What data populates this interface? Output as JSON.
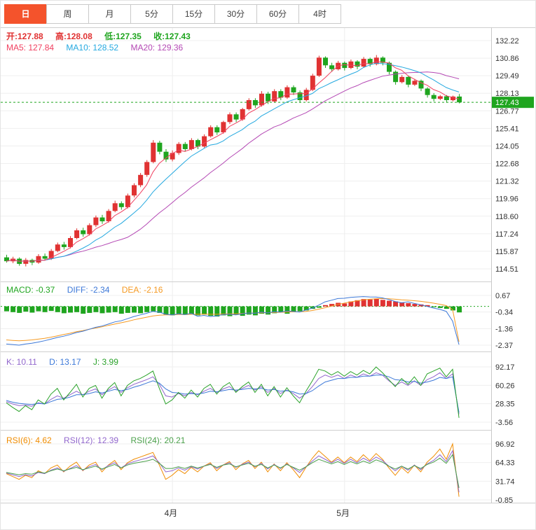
{
  "toolbar": {
    "tabs": [
      {
        "label": "日",
        "active": true
      },
      {
        "label": "周",
        "active": false
      },
      {
        "label": "月",
        "active": false
      },
      {
        "label": "5分",
        "active": false
      },
      {
        "label": "15分",
        "active": false
      },
      {
        "label": "30分",
        "active": false
      },
      {
        "label": "60分",
        "active": false
      },
      {
        "label": "4时",
        "active": false
      }
    ]
  },
  "main_header": {
    "open": "开:127.88",
    "high": "高:128.08",
    "low": "低:127.35",
    "close": "收:127.43",
    "ma5": "MA5: 127.84",
    "ma10": "MA10: 128.52",
    "ma20": "MA20: 129.36"
  },
  "macd_header": {
    "macd": "MACD: -0.37",
    "diff": "DIFF: -2.34",
    "dea": "DEA: -2.16"
  },
  "kdj_header": {
    "k": "K: 10.11",
    "d": "D: 13.17",
    "j": "J: 3.99"
  },
  "rsi_header": {
    "rsi6": "RSI(6): 4.62",
    "rsi12": "RSI(12): 12.39",
    "rsi24": "RSI(24): 20.21"
  },
  "colors": {
    "up": "#e03232",
    "down": "#1fa51f",
    "ma5": "#f04060",
    "ma10": "#25a9e0",
    "ma20": "#b448b4",
    "diff": "#3c78d8",
    "dea": "#f59a23",
    "k": "#9166cc",
    "d": "#3c78d8",
    "j": "#2aa22a",
    "rsi6": "#f08c00",
    "rsi12": "#9166cc",
    "rsi24": "#4ba04b",
    "price": "#1fa51f",
    "tab_active_bg": "#f4532c",
    "grid": "#efefef",
    "month_grid": "#ededed",
    "separator": "#cfcfcf",
    "axis_text": "#333333"
  },
  "chart_data": [
    {
      "type": "candlestick",
      "name": "price",
      "current_price": "127.43",
      "ma_periods": [
        5,
        10,
        20
      ],
      "y_ticks": [
        "132.22",
        "130.86",
        "129.49",
        "128.13",
        "126.77",
        "125.41",
        "124.05",
        "122.68",
        "121.32",
        "119.96",
        "118.60",
        "117.24",
        "115.87",
        "114.51"
      ],
      "x_labels": [
        {
          "label": "4月",
          "index": 26
        },
        {
          "label": "5月",
          "index": 53
        }
      ],
      "ohlc": [
        [
          115.4,
          115.6,
          115.0,
          115.1
        ],
        [
          115.1,
          115.45,
          114.95,
          115.3
        ],
        [
          115.3,
          115.4,
          114.75,
          114.9
        ],
        [
          114.9,
          115.35,
          114.7,
          115.2
        ],
        [
          115.2,
          115.3,
          114.8,
          115.0
        ],
        [
          115.0,
          115.65,
          114.9,
          115.5
        ],
        [
          115.5,
          115.7,
          115.15,
          115.3
        ],
        [
          115.3,
          116.05,
          115.2,
          115.9
        ],
        [
          115.9,
          116.55,
          115.8,
          116.4
        ],
        [
          116.4,
          116.6,
          116.0,
          116.2
        ],
        [
          116.2,
          117.05,
          116.1,
          116.9
        ],
        [
          116.9,
          117.65,
          116.8,
          117.5
        ],
        [
          117.5,
          117.7,
          117.0,
          117.2
        ],
        [
          117.2,
          118.05,
          117.1,
          117.9
        ],
        [
          117.9,
          118.65,
          117.75,
          118.5
        ],
        [
          118.5,
          118.7,
          118.0,
          118.2
        ],
        [
          118.2,
          119.15,
          118.1,
          119.0
        ],
        [
          119.0,
          119.8,
          118.9,
          119.6
        ],
        [
          119.6,
          119.75,
          119.1,
          119.3
        ],
        [
          119.3,
          120.35,
          119.2,
          120.2
        ],
        [
          120.2,
          121.15,
          120.05,
          121.0
        ],
        [
          121.0,
          121.95,
          120.85,
          121.8
        ],
        [
          121.8,
          122.95,
          121.65,
          122.8
        ],
        [
          122.8,
          124.5,
          122.7,
          124.3
        ],
        [
          124.3,
          124.45,
          123.4,
          123.6
        ],
        [
          123.6,
          123.8,
          122.8,
          123.0
        ],
        [
          123.0,
          123.7,
          122.85,
          123.5
        ],
        [
          123.5,
          124.35,
          123.35,
          124.2
        ],
        [
          124.2,
          124.35,
          123.6,
          123.8
        ],
        [
          123.8,
          124.65,
          123.7,
          124.5
        ],
        [
          124.5,
          124.6,
          123.8,
          124.0
        ],
        [
          124.0,
          124.95,
          123.9,
          124.8
        ],
        [
          124.8,
          125.65,
          124.7,
          125.5
        ],
        [
          125.5,
          125.65,
          124.9,
          125.1
        ],
        [
          125.1,
          126.0,
          125.0,
          125.9
        ],
        [
          125.9,
          126.65,
          125.75,
          126.5
        ],
        [
          126.5,
          126.65,
          125.9,
          126.1
        ],
        [
          126.1,
          127.0,
          126.0,
          126.9
        ],
        [
          126.9,
          127.75,
          126.8,
          127.6
        ],
        [
          127.6,
          127.75,
          127.0,
          127.2
        ],
        [
          127.2,
          128.3,
          127.1,
          128.1
        ],
        [
          128.1,
          128.25,
          127.3,
          127.5
        ],
        [
          127.5,
          128.45,
          127.4,
          128.3
        ],
        [
          128.3,
          128.45,
          127.6,
          127.8
        ],
        [
          127.8,
          128.75,
          127.7,
          128.6
        ],
        [
          128.6,
          128.75,
          128.0,
          128.2
        ],
        [
          128.2,
          128.35,
          127.4,
          127.6
        ],
        [
          127.6,
          128.55,
          127.5,
          128.4
        ],
        [
          128.4,
          129.65,
          128.3,
          129.5
        ],
        [
          129.5,
          131.05,
          129.4,
          130.9
        ],
        [
          130.9,
          131.0,
          130.1,
          130.3
        ],
        [
          130.3,
          130.5,
          129.8,
          130.0
        ],
        [
          130.0,
          130.65,
          129.9,
          130.5
        ],
        [
          130.5,
          130.6,
          129.9,
          130.1
        ],
        [
          130.1,
          130.75,
          130.0,
          130.6
        ],
        [
          130.6,
          130.7,
          130.0,
          130.2
        ],
        [
          130.2,
          130.95,
          130.1,
          130.8
        ],
        [
          130.8,
          130.9,
          130.2,
          130.4
        ],
        [
          130.4,
          131.1,
          130.3,
          130.9
        ],
        [
          130.9,
          131.0,
          130.3,
          130.5
        ],
        [
          130.5,
          130.6,
          129.6,
          129.8
        ],
        [
          129.8,
          129.9,
          128.8,
          129.0
        ],
        [
          129.0,
          129.55,
          128.9,
          129.4
        ],
        [
          129.4,
          129.5,
          128.6,
          128.8
        ],
        [
          128.8,
          129.25,
          128.7,
          129.1
        ],
        [
          129.1,
          129.2,
          128.3,
          128.5
        ],
        [
          128.5,
          128.6,
          127.8,
          128.0
        ],
        [
          128.0,
          128.15,
          127.5,
          127.7
        ],
        [
          127.7,
          128.0,
          127.6,
          127.9
        ],
        [
          127.9,
          128.0,
          127.4,
          127.6
        ],
        [
          127.6,
          127.95,
          127.5,
          127.88
        ],
        [
          127.88,
          128.08,
          127.35,
          127.43
        ]
      ]
    },
    {
      "type": "bar",
      "name": "MACD",
      "y_ticks": [
        "0.67",
        "-0.34",
        "-1.36",
        "-2.37"
      ],
      "hist": [
        -0.3,
        -0.35,
        -0.4,
        -0.32,
        -0.38,
        -0.3,
        -0.35,
        -0.28,
        -0.35,
        -0.42,
        -0.38,
        -0.35,
        -0.45,
        -0.4,
        -0.35,
        -0.42,
        -0.38,
        -0.35,
        -0.45,
        -0.4,
        -0.38,
        -0.42,
        -0.35,
        -0.3,
        -0.4,
        -0.5,
        -0.55,
        -0.45,
        -0.52,
        -0.48,
        -0.55,
        -0.5,
        -0.58,
        -0.62,
        -0.55,
        -0.6,
        -0.52,
        -0.58,
        -0.5,
        -0.55,
        -0.45,
        -0.5,
        -0.42,
        -0.38,
        -0.45,
        -0.35,
        -0.3,
        -0.25,
        -0.15,
        -0.08,
        0.08,
        0.15,
        0.22,
        0.18,
        0.3,
        0.38,
        0.45,
        0.42,
        0.48,
        0.4,
        0.35,
        0.3,
        0.25,
        0.2,
        0.15,
        0.12,
        0.08,
        -0.05,
        -0.1,
        -0.15,
        -0.25,
        -0.37
      ],
      "diff": [
        -2.3,
        -2.33,
        -2.37,
        -2.3,
        -2.25,
        -2.18,
        -2.1,
        -2.0,
        -1.9,
        -1.82,
        -1.72,
        -1.6,
        -1.52,
        -1.4,
        -1.28,
        -1.2,
        -1.08,
        -0.95,
        -0.88,
        -0.75,
        -0.62,
        -0.52,
        -0.42,
        -0.3,
        -0.35,
        -0.48,
        -0.52,
        -0.45,
        -0.5,
        -0.42,
        -0.6,
        -0.55,
        -0.62,
        -0.58,
        -0.5,
        -0.48,
        -0.52,
        -0.45,
        -0.4,
        -0.42,
        -0.35,
        -0.4,
        -0.32,
        -0.35,
        -0.28,
        -0.3,
        -0.35,
        -0.22,
        -0.1,
        0.08,
        0.28,
        0.38,
        0.48,
        0.5,
        0.55,
        0.58,
        0.6,
        0.58,
        0.57,
        0.52,
        0.42,
        0.3,
        0.22,
        0.28,
        0.18,
        0.1,
        0.0,
        -0.1,
        -0.18,
        -0.3,
        -0.9,
        -2.34
      ],
      "dea": [
        -2.05,
        -2.08,
        -2.1,
        -2.08,
        -2.05,
        -2.0,
        -1.95,
        -1.88,
        -1.8,
        -1.72,
        -1.64,
        -1.55,
        -1.48,
        -1.4,
        -1.32,
        -1.25,
        -1.16,
        -1.08,
        -1.0,
        -0.92,
        -0.82,
        -0.74,
        -0.66,
        -0.58,
        -0.54,
        -0.52,
        -0.52,
        -0.5,
        -0.5,
        -0.48,
        -0.48,
        -0.47,
        -0.48,
        -0.48,
        -0.46,
        -0.45,
        -0.45,
        -0.43,
        -0.41,
        -0.41,
        -0.39,
        -0.39,
        -0.37,
        -0.36,
        -0.34,
        -0.33,
        -0.33,
        -0.3,
        -0.25,
        -0.17,
        -0.08,
        0.02,
        0.12,
        0.2,
        0.28,
        0.34,
        0.4,
        0.44,
        0.47,
        0.48,
        0.47,
        0.44,
        0.4,
        0.38,
        0.35,
        0.31,
        0.26,
        0.2,
        0.13,
        0.05,
        -0.2,
        -2.16
      ]
    },
    {
      "type": "line",
      "name": "KDJ",
      "y_ticks": [
        "92.17",
        "60.26",
        "28.35",
        "-3.56"
      ],
      "series": [
        {
          "name": "K",
          "values": [
            32,
            28,
            25,
            26,
            24,
            30,
            28,
            36,
            42,
            38,
            44,
            50,
            44,
            50,
            54,
            44,
            52,
            58,
            48,
            56,
            62,
            66,
            70,
            75,
            62,
            42,
            40,
            46,
            42,
            48,
            44,
            50,
            55,
            48,
            54,
            58,
            50,
            55,
            60,
            52,
            58,
            48,
            55,
            46,
            52,
            46,
            38,
            46,
            58,
            72,
            78,
            74,
            78,
            72,
            78,
            74,
            80,
            76,
            82,
            78,
            68,
            60,
            66,
            60,
            68,
            60,
            70,
            75,
            82,
            72,
            80,
            10.11
          ]
        },
        {
          "name": "D",
          "values": [
            34,
            31,
            29,
            28,
            27,
            29,
            28,
            32,
            36,
            37,
            40,
            44,
            44,
            46,
            49,
            47,
            50,
            53,
            51,
            53,
            57,
            60,
            64,
            68,
            64,
            54,
            48,
            47,
            45,
            46,
            45,
            47,
            50,
            49,
            51,
            53,
            52,
            53,
            55,
            54,
            55,
            52,
            53,
            50,
            51,
            49,
            45,
            46,
            51,
            59,
            66,
            69,
            72,
            72,
            74,
            74,
            76,
            76,
            78,
            78,
            75,
            70,
            69,
            66,
            67,
            64,
            66,
            69,
            74,
            72,
            75,
            13.17
          ]
        },
        {
          "name": "J",
          "values": [
            30,
            22,
            15,
            25,
            18,
            35,
            28,
            45,
            55,
            35,
            48,
            62,
            40,
            55,
            60,
            38,
            55,
            65,
            42,
            60,
            68,
            72,
            78,
            85,
            55,
            28,
            35,
            48,
            38,
            52,
            40,
            55,
            62,
            45,
            58,
            65,
            48,
            58,
            66,
            48,
            62,
            42,
            58,
            40,
            56,
            42,
            30,
            50,
            68,
            88,
            85,
            78,
            84,
            76,
            84,
            78,
            86,
            80,
            92,
            82,
            70,
            58,
            72,
            62,
            75,
            60,
            80,
            85,
            90,
            75,
            88,
            3.99
          ]
        }
      ]
    },
    {
      "type": "line",
      "name": "RSI",
      "y_ticks": [
        "96.92",
        "64.33",
        "31.74",
        "-0.85"
      ],
      "series": [
        {
          "name": "RSI6",
          "values": [
            45,
            40,
            35,
            42,
            38,
            50,
            45,
            55,
            60,
            48,
            58,
            65,
            50,
            60,
            65,
            48,
            60,
            68,
            52,
            64,
            70,
            74,
            78,
            82,
            60,
            35,
            42,
            52,
            45,
            56,
            48,
            58,
            64,
            50,
            60,
            66,
            52,
            62,
            68,
            54,
            65,
            48,
            62,
            50,
            64,
            52,
            38,
            56,
            72,
            85,
            75,
            65,
            74,
            64,
            74,
            66,
            78,
            68,
            80,
            70,
            55,
            42,
            56,
            46,
            60,
            48,
            65,
            75,
            88,
            70,
            96.92,
            4.62
          ]
        },
        {
          "name": "RSI12",
          "values": [
            46,
            43,
            40,
            43,
            41,
            47,
            45,
            51,
            55,
            49,
            54,
            59,
            51,
            57,
            61,
            52,
            59,
            64,
            55,
            62,
            66,
            69,
            72,
            76,
            64,
            48,
            50,
            55,
            51,
            57,
            53,
            58,
            62,
            54,
            60,
            64,
            56,
            61,
            65,
            57,
            63,
            53,
            61,
            54,
            62,
            55,
            47,
            57,
            67,
            76,
            70,
            64,
            70,
            63,
            70,
            64,
            72,
            66,
            74,
            68,
            58,
            50,
            58,
            51,
            60,
            52,
            62,
            68,
            78,
            66,
            85,
            12.39
          ]
        },
        {
          "name": "RSI24",
          "values": [
            47,
            45,
            43,
            45,
            44,
            48,
            46,
            50,
            53,
            50,
            53,
            56,
            52,
            55,
            58,
            53,
            57,
            61,
            55,
            60,
            63,
            65,
            67,
            70,
            63,
            54,
            54,
            57,
            54,
            58,
            55,
            58,
            61,
            56,
            60,
            62,
            57,
            60,
            63,
            58,
            61,
            55,
            60,
            55,
            61,
            56,
            51,
            57,
            64,
            70,
            66,
            62,
            66,
            61,
            66,
            62,
            67,
            63,
            69,
            65,
            58,
            53,
            58,
            53,
            59,
            54,
            61,
            65,
            72,
            63,
            78,
            20.21
          ]
        }
      ]
    }
  ]
}
